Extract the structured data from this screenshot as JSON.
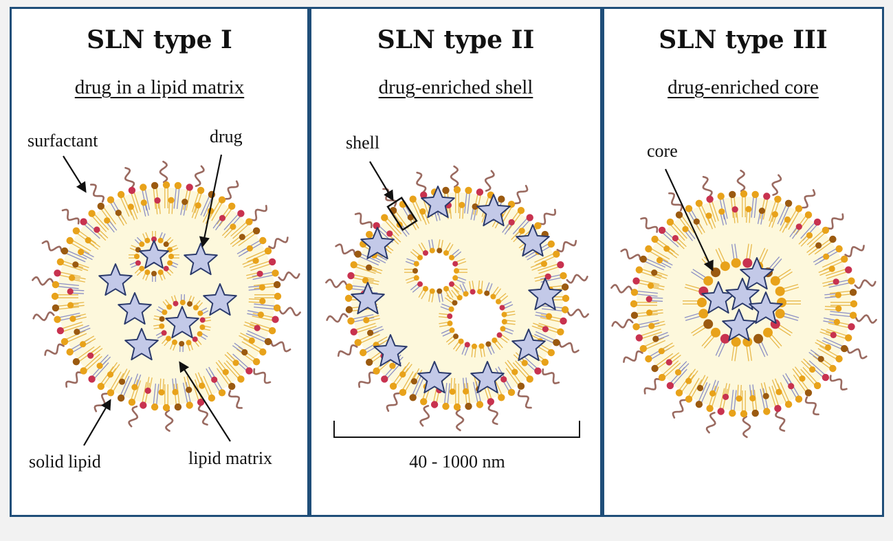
{
  "panels": [
    {
      "title": "SLN type I",
      "subtitle": "drug in a lipid matrix",
      "labels": {
        "surfactant": "surfactant",
        "drug": "drug",
        "solid_lipid": "solid lipid",
        "lipid_matrix": "lipid matrix"
      }
    },
    {
      "title": "SLN type II",
      "subtitle": "drug-enriched shell",
      "labels": {
        "shell": "shell",
        "scale": "40 - 1000 nm"
      }
    },
    {
      "title": "SLN type III",
      "subtitle": "drug-enriched core",
      "labels": {
        "core": "core"
      }
    }
  ],
  "colors": {
    "frame": "#1f4e79",
    "head_orange": "#e8a21a",
    "head_red": "#c8324f",
    "head_brown": "#9b5a10",
    "tail_yellow": "#e8b84a",
    "tail_blue": "#8c8fc4",
    "surfactant": "#9a6a60",
    "matrix": "#fdf8dc",
    "drug_fill": "#c3c9e8",
    "drug_stroke": "#2b3a6b"
  }
}
